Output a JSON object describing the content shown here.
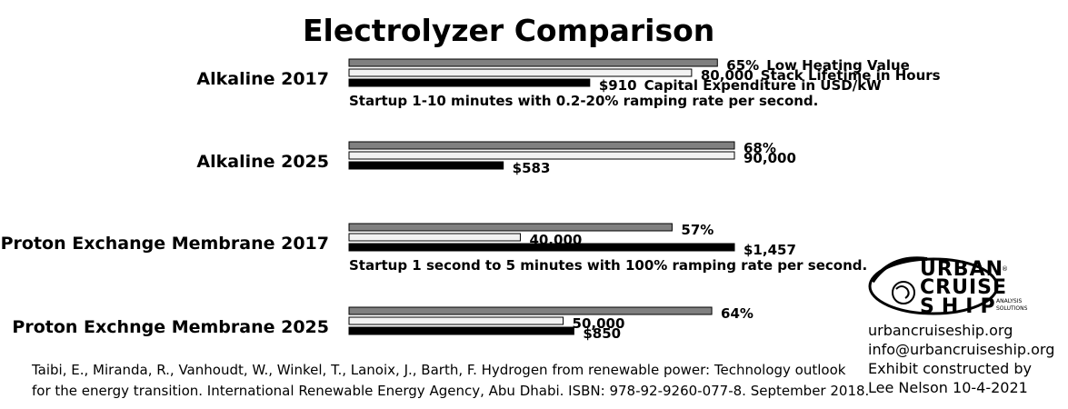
{
  "chart_data": {
    "type": "bar",
    "title": "Electrolyzer Comparison",
    "legend": {
      "entries": [
        "Low Heating Value",
        "Stack Lifetime in Hours",
        "Capital Expenditure in USD/kW"
      ],
      "placement": "inline beside first group"
    },
    "series_colors": [
      "#808080",
      "#f2f2f2",
      "#000000"
    ],
    "groups": [
      {
        "category": "Alkaline 2017",
        "bars": [
          {
            "series": "Low Heating Value",
            "value": 65,
            "label": "65%"
          },
          {
            "series": "Stack Lifetime in Hours",
            "value": 80000,
            "label": "80,000"
          },
          {
            "series": "Capital Expenditure in USD/kW",
            "value": 910,
            "label": "$910"
          }
        ],
        "note": "Startup 1-10 minutes with 0.2-20% ramping rate per second."
      },
      {
        "category": "Alkaline 2025",
        "bars": [
          {
            "series": "Low Heating Value",
            "value": 68,
            "label": "68%"
          },
          {
            "series": "Stack Lifetime in Hours",
            "value": 90000,
            "label": "90,000"
          },
          {
            "series": "Capital Expenditure in USD/kW",
            "value": 583,
            "label": "$583"
          }
        ],
        "note": ""
      },
      {
        "category": "Proton Exchange Membrane 2017",
        "bars": [
          {
            "series": "Low Heating Value",
            "value": 57,
            "label": "57%"
          },
          {
            "series": "Stack Lifetime in Hours",
            "value": 40000,
            "label": "40,000"
          },
          {
            "series": "Capital Expenditure in USD/kW",
            "value": 1457,
            "label": "$1,457"
          }
        ],
        "note": "Startup 1 second to 5 minutes with 100% ramping rate per second."
      },
      {
        "category": "Proton Exchnge Membrane 2025",
        "bars": [
          {
            "series": "Low Heating Value",
            "value": 64,
            "label": "64%"
          },
          {
            "series": "Stack Lifetime in Hours",
            "value": 50000,
            "label": "50,000"
          },
          {
            "series": "Capital Expenditure in USD/kW",
            "value": 850,
            "label": "$850"
          }
        ],
        "note": ""
      }
    ],
    "series_max": [
      68,
      90000,
      1457
    ],
    "grid": false
  },
  "sources": [
    "Taibi, E., Miranda, R., Vanhoudt, W., Winkel, T., Lanoix, J., Barth, F. Hydrogen from renewable power: Technology outlook",
    "for the energy transition. International Renewable Energy Agency, Abu Dhabi. ISBN: 978-92-9260-077-8. September 2018."
  ],
  "credits": [
    "urbancruiseship.org",
    "info@urbancruiseship.org",
    "Exhibit constructed by",
    "Lee Nelson 10-4-2021"
  ],
  "logo": {
    "line1": "URBAN",
    "line2": "CRUISE",
    "line3": "SHIP",
    "sub1": "ANALYSIS",
    "sub2": "SOLUTIONS",
    "mark": "®"
  }
}
